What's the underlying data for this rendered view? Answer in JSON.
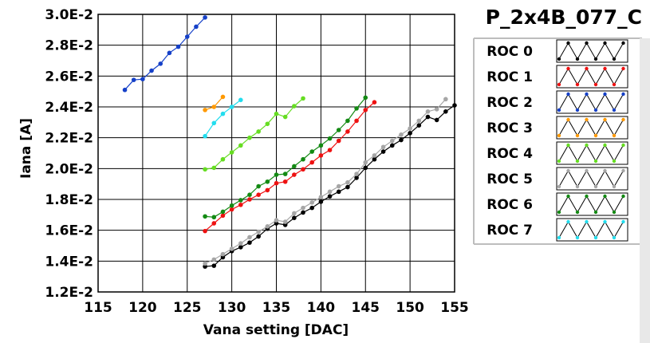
{
  "chart_data": {
    "type": "line",
    "title": "P_2x4B_077_C",
    "xlabel": "Vana setting [DAC]",
    "ylabel": "Iana [A]",
    "xlim": [
      115,
      155
    ],
    "ylim": [
      0.012,
      0.03
    ],
    "x_ticks": [
      115,
      120,
      125,
      130,
      135,
      140,
      145,
      150,
      155
    ],
    "x_tick_labels": [
      "115",
      "120",
      "125",
      "130",
      "135",
      "140",
      "145",
      "150",
      "155"
    ],
    "y_ticks": [
      0.012,
      0.014,
      0.016,
      0.018,
      0.02,
      0.022,
      0.024,
      0.026,
      0.028,
      0.03
    ],
    "y_tick_labels": [
      "1.2E-2",
      "1.4E-2",
      "1.6E-2",
      "1.8E-2",
      "2.0E-2",
      "2.2E-2",
      "2.4E-2",
      "2.6E-2",
      "2.8E-2",
      "3.0E-2"
    ],
    "grid": true,
    "legend_position": "right",
    "series": [
      {
        "name": "ROC 0",
        "color": "#000000",
        "x": [
          127,
          128,
          129,
          130,
          131,
          132,
          133,
          134,
          135,
          136,
          137,
          138,
          139,
          140,
          141,
          142,
          143,
          144,
          145,
          146,
          147,
          148,
          149,
          150,
          151,
          152,
          153,
          154,
          155
        ],
        "y": [
          0.01365,
          0.0137,
          0.01425,
          0.01465,
          0.0149,
          0.0152,
          0.0156,
          0.0161,
          0.01645,
          0.01635,
          0.0168,
          0.01715,
          0.01745,
          0.01785,
          0.0182,
          0.0185,
          0.0188,
          0.0194,
          0.02005,
          0.0206,
          0.0211,
          0.0215,
          0.02185,
          0.0223,
          0.0228,
          0.02335,
          0.02315,
          0.0237,
          0.0241
        ]
      },
      {
        "name": "ROC 1",
        "color": "#ee1111",
        "x": [
          127,
          128,
          129,
          130,
          131,
          132,
          133,
          134,
          135,
          136,
          137,
          138,
          139,
          140,
          141,
          142,
          143,
          144,
          145,
          146
        ],
        "y": [
          0.01595,
          0.01645,
          0.01695,
          0.01735,
          0.01765,
          0.018,
          0.0183,
          0.0186,
          0.01905,
          0.01915,
          0.0196,
          0.01995,
          0.0204,
          0.02085,
          0.0212,
          0.0218,
          0.0224,
          0.0231,
          0.0238,
          0.0243
        ]
      },
      {
        "name": "ROC 2",
        "color": "#1540c8",
        "x": [
          118,
          119,
          120,
          121,
          122,
          123,
          124,
          125,
          126,
          127
        ],
        "y": [
          0.0251,
          0.02575,
          0.0258,
          0.02635,
          0.0268,
          0.0275,
          0.0279,
          0.02855,
          0.0292,
          0.0298
        ]
      },
      {
        "name": "ROC 3",
        "color": "#ff9900",
        "x": [
          127,
          128,
          129
        ],
        "y": [
          0.0238,
          0.024,
          0.02465
        ]
      },
      {
        "name": "ROC 4",
        "color": "#66dd22",
        "x": [
          127,
          128,
          129,
          130,
          131,
          132,
          133,
          134,
          135,
          136,
          137,
          138
        ],
        "y": [
          0.01995,
          0.02005,
          0.0206,
          0.02105,
          0.0215,
          0.022,
          0.0224,
          0.0229,
          0.02355,
          0.02335,
          0.02405,
          0.02455
        ]
      },
      {
        "name": "ROC 5",
        "color": "#a6a6a6",
        "x": [
          127,
          128,
          129,
          130,
          131,
          132,
          133,
          134,
          135,
          136,
          137,
          138,
          139,
          140,
          141,
          142,
          143,
          144,
          145,
          146,
          147,
          148,
          149,
          150,
          151,
          152,
          153,
          154
        ],
        "y": [
          0.01385,
          0.0141,
          0.01445,
          0.0148,
          0.01515,
          0.01555,
          0.0159,
          0.01625,
          0.01665,
          0.01655,
          0.0171,
          0.01745,
          0.0178,
          0.01815,
          0.0185,
          0.01885,
          0.0191,
          0.01965,
          0.0204,
          0.02085,
          0.0214,
          0.0218,
          0.0222,
          0.0226,
          0.0231,
          0.0237,
          0.02385,
          0.0245
        ]
      },
      {
        "name": "ROC 6",
        "color": "#138a13",
        "x": [
          127,
          128,
          129,
          130,
          131,
          132,
          133,
          134,
          135,
          136,
          137,
          138,
          139,
          140,
          141,
          142,
          143,
          144,
          145
        ],
        "y": [
          0.0169,
          0.01685,
          0.0172,
          0.0176,
          0.01795,
          0.0183,
          0.01885,
          0.01915,
          0.0196,
          0.01965,
          0.02015,
          0.0206,
          0.0211,
          0.0215,
          0.02195,
          0.0225,
          0.0231,
          0.0239,
          0.0246
        ]
      },
      {
        "name": "ROC 7",
        "color": "#22ddee",
        "x": [
          127,
          128,
          129,
          130,
          131
        ],
        "y": [
          0.0221,
          0.02295,
          0.02355,
          0.024,
          0.02445
        ]
      }
    ]
  }
}
